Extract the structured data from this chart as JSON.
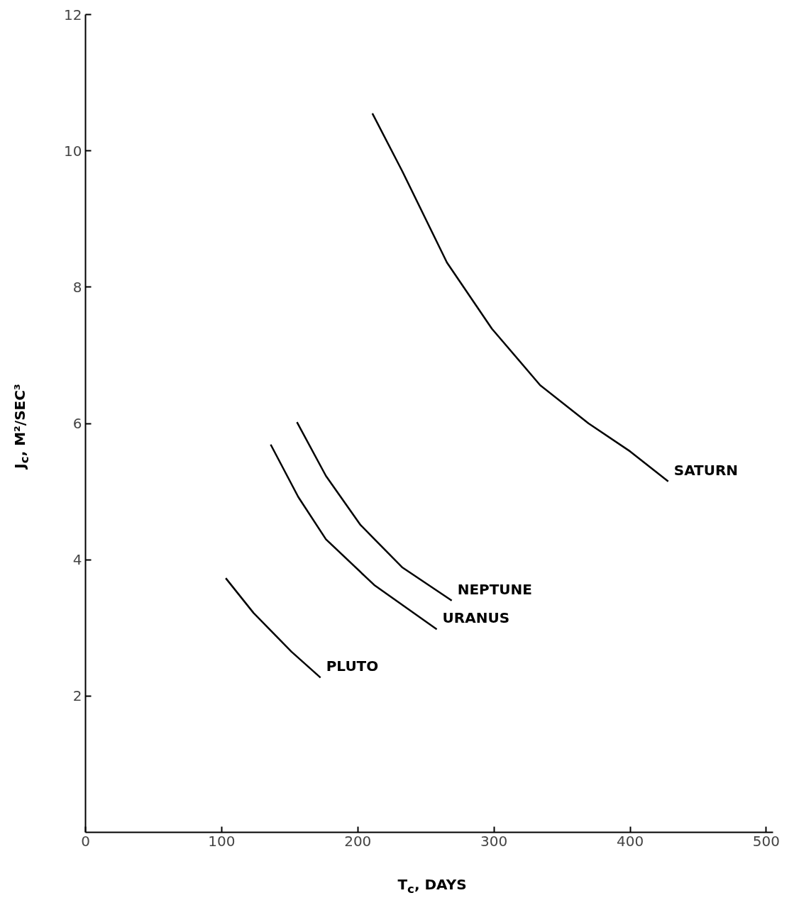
{
  "chart_data": {
    "type": "line",
    "xlabel": "T$_{c}$, DAYS",
    "ylabel": "J$_{c}$, M²/SEC³",
    "xlim": [
      0,
      505
    ],
    "xticks": [
      0,
      100,
      200,
      300,
      400,
      500
    ],
    "ylim": [
      0,
      12
    ],
    "yticks": [
      2,
      4,
      6,
      8,
      10,
      12
    ],
    "grid": false,
    "legend": false,
    "marker": "none",
    "line_style": "solid",
    "series": [
      {
        "name": "SATURN",
        "color": "#000000",
        "x": [
          210.7,
          232.7,
          265.5,
          298.5,
          334,
          369.5,
          400,
          428
        ],
        "values": [
          10.55,
          9.7,
          8.36,
          7.39,
          6.56,
          6.0,
          5.59,
          5.15
        ]
      },
      {
        "name": "NEPTUNE",
        "color": "#000000",
        "x": [
          155.3,
          176.6,
          202,
          232.5,
          269
        ],
        "values": [
          6.02,
          5.23,
          4.51,
          3.89,
          3.4
        ]
      },
      {
        "name": "URANUS",
        "color": "#000000",
        "x": [
          136,
          156.3,
          176.6,
          212,
          258
        ],
        "values": [
          5.69,
          4.92,
          4.3,
          3.63,
          2.98
        ]
      },
      {
        "name": "PLUTO",
        "color": "#000000",
        "x": [
          103,
          123.4,
          151.3,
          172.6
        ],
        "values": [
          3.73,
          3.22,
          2.65,
          2.27
        ]
      }
    ]
  }
}
